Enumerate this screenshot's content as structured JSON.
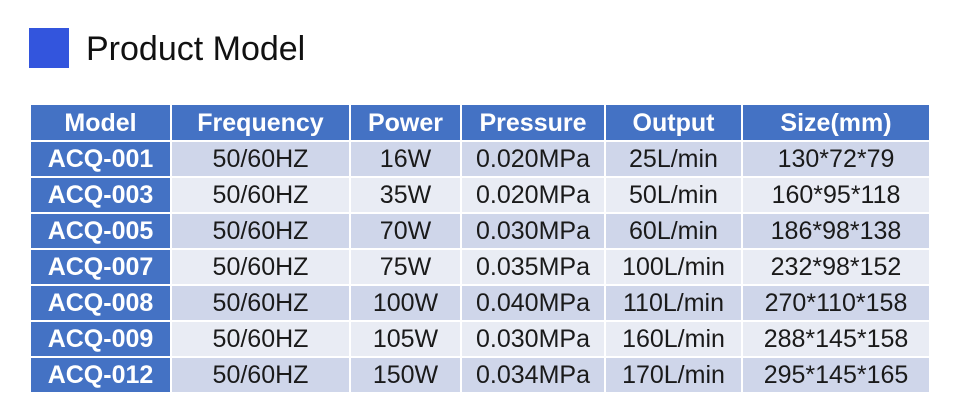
{
  "heading": {
    "title": "Product Model",
    "accent_color": "#3355dd"
  },
  "table": {
    "header_color": "#4472c4",
    "columns": [
      "Model",
      "Frequency",
      "Power",
      "Pressure",
      "Output",
      "Size(mm)"
    ],
    "rows": [
      [
        "ACQ-001",
        "50/60HZ",
        "16W",
        "0.020MPa",
        "25L/min",
        "130*72*79"
      ],
      [
        "ACQ-003",
        "50/60HZ",
        "35W",
        "0.020MPa",
        "50L/min",
        "160*95*118"
      ],
      [
        "ACQ-005",
        "50/60HZ",
        "70W",
        "0.030MPa",
        "60L/min",
        "186*98*138"
      ],
      [
        "ACQ-007",
        "50/60HZ",
        "75W",
        "0.035MPa",
        "100L/min",
        "232*98*152"
      ],
      [
        "ACQ-008",
        "50/60HZ",
        "100W",
        "0.040MPa",
        "110L/min",
        "270*110*158"
      ],
      [
        "ACQ-009",
        "50/60HZ",
        "105W",
        "0.030MPa",
        "160L/min",
        "288*145*158"
      ],
      [
        "ACQ-012",
        "50/60HZ",
        "150W",
        "0.034MPa",
        "170L/min",
        "295*145*165"
      ]
    ]
  }
}
